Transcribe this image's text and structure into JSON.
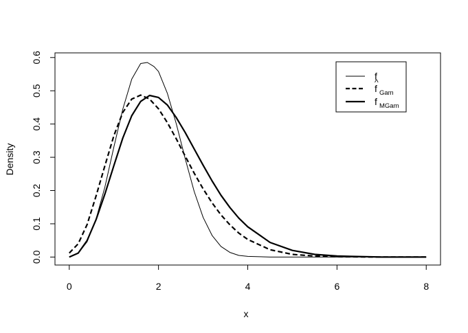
{
  "chart_data": {
    "type": "line",
    "title": "",
    "xlabel": "x",
    "ylabel": "Density",
    "xlim": [
      -0.32,
      8.32
    ],
    "ylim": [
      -0.024,
      0.614
    ],
    "x_ticks": [
      0,
      2,
      4,
      6,
      8
    ],
    "y_ticks": [
      0.0,
      0.1,
      0.2,
      0.3,
      0.4,
      0.5,
      0.6
    ],
    "x_tick_labels": [
      "0",
      "2",
      "4",
      "6",
      "8"
    ],
    "y_tick_labels": [
      "0.0",
      "0.1",
      "0.2",
      "0.3",
      "0.4",
      "0.5",
      "0.6"
    ],
    "grid": false,
    "legend_position": "top-right",
    "legend": [
      {
        "main": "f",
        "hat": "",
        "subscript": "",
        "style": "solid-thin"
      },
      {
        "main": "f",
        "hat": "^",
        "subscript": "Gam",
        "style": "dashed"
      },
      {
        "main": "f",
        "hat": "",
        "subscript": "MGam",
        "style": "solid-thick"
      }
    ],
    "series": [
      {
        "style": "solid-thin",
        "x": [
          0,
          0.2,
          0.4,
          0.6,
          0.8,
          1.0,
          1.2,
          1.4,
          1.6,
          1.75,
          1.9,
          2.0,
          2.2,
          2.4,
          2.6,
          2.8,
          3.0,
          3.2,
          3.4,
          3.6,
          3.8,
          4.0,
          4.5,
          5.0,
          6.0,
          7.0,
          8.0
        ],
        "y": [
          0.0,
          0.011,
          0.046,
          0.114,
          0.211,
          0.331,
          0.445,
          0.535,
          0.582,
          0.585,
          0.573,
          0.558,
          0.492,
          0.4,
          0.295,
          0.197,
          0.119,
          0.065,
          0.032,
          0.014,
          0.005,
          0.002,
          0.0,
          0.0,
          0.0,
          0.0,
          0.0
        ]
      },
      {
        "style": "dashed",
        "x": [
          0,
          0.2,
          0.4,
          0.6,
          0.8,
          1.0,
          1.2,
          1.4,
          1.6,
          1.8,
          2.0,
          2.2,
          2.4,
          2.6,
          2.8,
          3.0,
          3.2,
          3.4,
          3.6,
          3.8,
          4.0,
          4.5,
          5.0,
          5.5,
          6.0,
          7.0,
          8.0
        ],
        "y": [
          0.012,
          0.04,
          0.098,
          0.183,
          0.275,
          0.365,
          0.435,
          0.475,
          0.487,
          0.475,
          0.446,
          0.404,
          0.355,
          0.303,
          0.252,
          0.205,
          0.163,
          0.127,
          0.097,
          0.072,
          0.053,
          0.022,
          0.008,
          0.003,
          0.001,
          0.0,
          0.0
        ]
      },
      {
        "style": "solid-thick",
        "x": [
          0,
          0.2,
          0.4,
          0.6,
          0.8,
          1.0,
          1.2,
          1.4,
          1.6,
          1.8,
          2.0,
          2.2,
          2.4,
          2.6,
          2.8,
          3.0,
          3.2,
          3.4,
          3.6,
          3.8,
          4.0,
          4.5,
          5.0,
          5.5,
          6.0,
          7.0,
          8.0
        ],
        "y": [
          0.0,
          0.012,
          0.05,
          0.112,
          0.19,
          0.275,
          0.358,
          0.425,
          0.468,
          0.486,
          0.48,
          0.457,
          0.419,
          0.374,
          0.325,
          0.276,
          0.229,
          0.186,
          0.149,
          0.117,
          0.091,
          0.044,
          0.02,
          0.008,
          0.003,
          0.0,
          0.0
        ]
      }
    ]
  }
}
